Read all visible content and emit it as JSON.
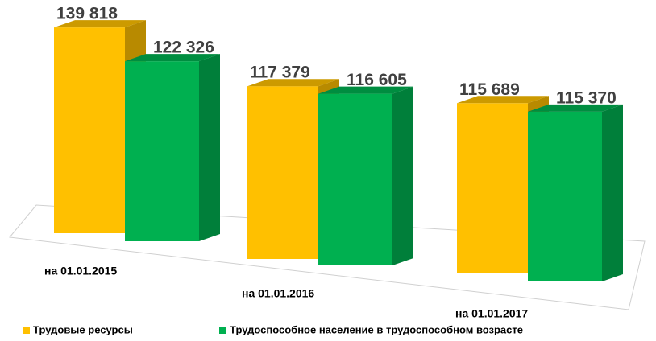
{
  "chart_data": {
    "type": "bar3d",
    "categories": [
      "на 01.01.2015",
      "на 01.01.2016",
      "на 01.01.2017"
    ],
    "series": [
      {
        "name": "Трудовые ресурсы",
        "color": "#ffc000",
        "values": [
          139818,
          117379,
          115689
        ],
        "value_labels": [
          "139 818",
          "117 379",
          "115 689"
        ]
      },
      {
        "name": "Трудоспособное население в трудоспособном возрасте",
        "color": "#00b050",
        "values": [
          122326,
          116605,
          115370
        ],
        "value_labels": [
          "122 326",
          "116 605",
          "115 370"
        ]
      }
    ],
    "legend": "bottom"
  }
}
